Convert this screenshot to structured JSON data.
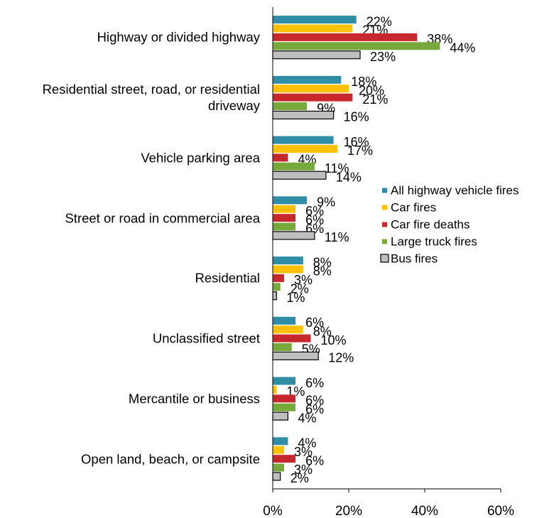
{
  "chart_data": {
    "type": "hbar",
    "categories": [
      "Highway or divided highway",
      "Residential street, road, or residential driveway",
      "Vehicle parking area",
      "Street or road in commercial area",
      "Residential",
      "Unclassified street",
      "Mercantile or business",
      "Open land, beach, or campsite"
    ],
    "series": [
      {
        "name": "All highway vehicle fires",
        "color": "#2f8ea6",
        "values": [
          22,
          18,
          16,
          9,
          8,
          6,
          6,
          4
        ],
        "value_labels": [
          "22%",
          "18%",
          "16%",
          "9%",
          "8%",
          "6%",
          "6%",
          "4%"
        ]
      },
      {
        "name": "Car fires",
        "color": "#ffc000",
        "values": [
          21,
          20,
          17,
          6,
          8,
          8,
          1,
          3
        ],
        "value_labels": [
          "21%",
          "20%",
          "17%",
          "6%",
          "8%",
          "8%",
          "1%",
          "3%"
        ]
      },
      {
        "name": "Car fire deaths",
        "color": "#c7282e",
        "values": [
          38,
          21,
          4,
          6,
          3,
          10,
          6,
          6
        ],
        "value_labels": [
          "38%",
          "21%",
          "4%",
          "6%",
          "3%",
          "10%",
          "6%",
          "6%"
        ]
      },
      {
        "name": "Large truck fires",
        "color": "#77a83a",
        "values": [
          44,
          9,
          11,
          6,
          2,
          5,
          6,
          3
        ],
        "value_labels": [
          "44%",
          "9%",
          "11%",
          "6%",
          "2%",
          "5%",
          "6%",
          "3%"
        ]
      },
      {
        "name": "Bus fires",
        "color": "#bfbfbf",
        "values": [
          23,
          16,
          14,
          11,
          1,
          12,
          4,
          2
        ],
        "value_labels": [
          "23%",
          "16%",
          "14%",
          "11%",
          "1%",
          "12%",
          "4%",
          "2%"
        ]
      }
    ],
    "xlim": [
      0,
      60
    ],
    "xticks": [
      {
        "value": 0,
        "label": "0%"
      },
      {
        "value": 20,
        "label": "20%"
      },
      {
        "value": 40,
        "label": "40%"
      },
      {
        "value": 60,
        "label": "60%"
      }
    ],
    "legend": "right"
  }
}
